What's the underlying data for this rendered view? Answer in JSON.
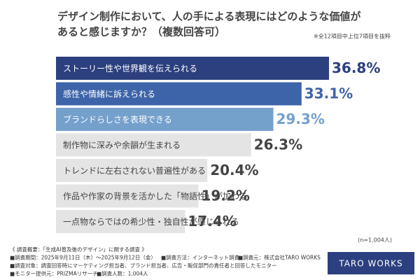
{
  "chart_data": {
    "type": "bar",
    "orientation": "horizontal",
    "title": [
      "デザイン制作において、人の手による表現にはどのような価値が",
      "あると感じますか？（複数回答可）"
    ],
    "note": "※全12項目中上位7項目を抜粋",
    "categories": [
      "ストーリー性や世界観を伝えられる",
      "感性や情緒に訴えられる",
      "ブランドらしさを表現できる",
      "制作物に深みや余韻が生まれる",
      "トレンドに左右されない普遍性がある",
      "作品や作家の背景を活かした「物語性」が加わる",
      "一点物ならではの希少性・独自性が感じられる"
    ],
    "values": [
      36.8,
      33.1,
      29.3,
      26.3,
      20.4,
      19.2,
      17.4
    ],
    "value_labels": [
      "36.8%",
      "33.1%",
      "29.3%",
      "26.3%",
      "20.4%",
      "19.2%",
      "17.4%"
    ],
    "colors": [
      "#2c3f7f",
      "#3d64a8",
      "#74a0cc",
      "#e4e4e4",
      "#e4e4e4",
      "#e4e4e4",
      "#e4e4e4"
    ],
    "category_label_colors": [
      "#ffffff",
      "#ffffff",
      "#ffffff",
      "#444444",
      "#444444",
      "#444444",
      "#444444"
    ],
    "value_label_colors": [
      "#2c3f7f",
      "#3d64a8",
      "#74a0cc",
      "#444444",
      "#444444",
      "#444444",
      "#444444"
    ],
    "sample_size": "(n=1,004人)"
  },
  "footer": {
    "lines": [
      [
        "《 調査概要：「生成AI普及後のデザイン」に関する調査 》"
      ],
      [
        "■調査期間：2025年9月11日（木）～2025年9月12日（金）",
        "■調査方法：インターネット調査",
        "■調査元：株式会社TARO WORKS"
      ],
      [
        "■調査対象：調査回答時にマーケティング担当者、ブランド担当者、広告・販促部門の責任者と回答したモニター"
      ],
      [
        "■モニター提供元：PRIZMAリサーチ",
        "■調査人数：1,004人"
      ]
    ],
    "brand": "TARO WORKS"
  }
}
